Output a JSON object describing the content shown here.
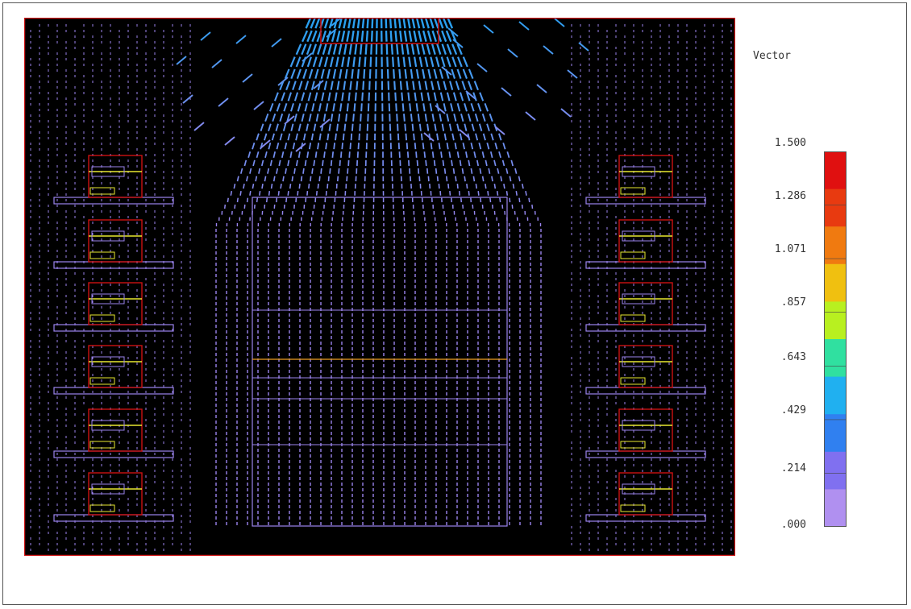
{
  "legend": {
    "title": "Vector",
    "ticks": [
      "1.500",
      "1.286",
      "1.071",
      ".857",
      ".643",
      ".429",
      ".214",
      ".000"
    ],
    "colors": [
      "#e01010",
      "#e83a10",
      "#f07a10",
      "#f0c010",
      "#b8f020",
      "#30e0a0",
      "#20b0f0",
      "#3080f0",
      "#8070f0",
      "#b090f0"
    ]
  },
  "scene": {
    "background": "#000000",
    "border_color": "#cc1111",
    "component_outline": "#cc1111",
    "board_color": "#9b84ee",
    "flow_low_color": "#9b84ee",
    "flow_high_color": "#2aa0f0",
    "accent_line_color": "#f0a020",
    "module_fill_color": "#e8e830"
  }
}
